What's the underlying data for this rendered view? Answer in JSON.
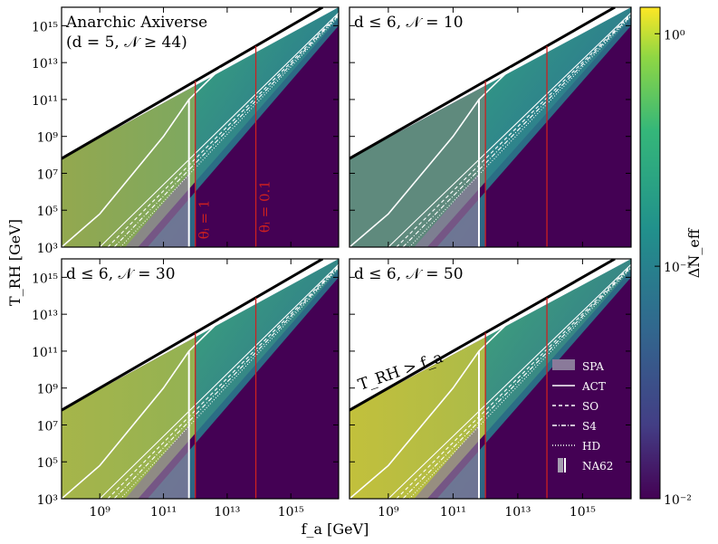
{
  "chart_data": [
    {
      "type": "heatmap",
      "panel": "top-left",
      "title": "Anarchic Axiverse",
      "subtitle": "(d = 5, 𝒩 ≥ 44)",
      "annotations": [
        "θᵢ = 1",
        "θᵢ = 0.1"
      ],
      "fa_ticks": [
        "10⁹",
        "10¹¹",
        "10¹³",
        "10¹⁵"
      ],
      "trh_ticks": [
        "10³",
        "10⁵",
        "10⁷",
        "10⁹",
        "10¹¹",
        "10¹³",
        "10¹⁵"
      ],
      "log_fa_range": [
        7.8,
        16.5
      ],
      "log_trh_range": [
        3,
        16
      ],
      "theta_lines_log_fa": [
        12.0,
        13.9
      ],
      "na62_log_fa": 11.8,
      "act_curve": [
        [
          7.8,
          3
        ],
        [
          9,
          4.8
        ],
        [
          10,
          6.9
        ],
        [
          11,
          9.0
        ],
        [
          11.8,
          11.0
        ],
        [
          12.8,
          12.7
        ]
      ],
      "colors": {
        "theta_line": "#cc2020",
        "boundary": "#000000"
      }
    },
    {
      "type": "heatmap",
      "panel": "top-right",
      "title": "d ≤ 6, 𝒩 = 10",
      "fa_ticks": [
        "10⁹",
        "10¹¹",
        "10¹³",
        "10¹⁵"
      ],
      "trh_ticks": [
        "10³",
        "10⁵",
        "10⁷",
        "10⁹",
        "10¹¹",
        "10¹³",
        "10¹⁵"
      ],
      "log_fa_range": [
        7.8,
        16.5
      ],
      "log_trh_range": [
        3,
        16
      ]
    },
    {
      "type": "heatmap",
      "panel": "bottom-left",
      "title": "d ≤ 6, 𝒩 = 30",
      "fa_ticks": [
        "10⁹",
        "10¹¹",
        "10¹³",
        "10¹⁵"
      ],
      "trh_ticks": [
        "10³",
        "10⁵",
        "10⁷",
        "10⁹",
        "10¹¹",
        "10¹³",
        "10¹⁵"
      ],
      "log_fa_range": [
        7.8,
        16.5
      ],
      "log_trh_range": [
        3,
        16
      ]
    },
    {
      "type": "heatmap",
      "panel": "bottom-right",
      "title": "d ≤ 6, 𝒩 = 50",
      "boundary_label": "T_RH > f_a",
      "fa_ticks": [
        "10⁹",
        "10¹¹",
        "10¹³",
        "10¹⁵"
      ],
      "trh_ticks": [
        "10³",
        "10⁵",
        "10⁷",
        "10⁹",
        "10¹¹",
        "10¹³",
        "10¹⁵"
      ],
      "log_fa_range": [
        7.8,
        16.5
      ],
      "log_trh_range": [
        3,
        16
      ]
    }
  ],
  "axes": {
    "xlabel": "f_a [GeV]",
    "ylabel": "T_RH [GeV]"
  },
  "colorbar": {
    "label": "ΔN_eff",
    "scale": "log",
    "range": [
      0.01,
      1.3
    ],
    "ticks": [
      "10⁰",
      "10⁻¹",
      "10⁻²"
    ],
    "colormap": [
      "#440154",
      "#3b528b",
      "#21918c",
      "#5ec962",
      "#fde725"
    ]
  },
  "legend": {
    "placement": "bottom-right",
    "items": [
      {
        "label": "SPA",
        "style": "band"
      },
      {
        "label": "ACT",
        "style": "solid"
      },
      {
        "label": "SO",
        "style": "dashed"
      },
      {
        "label": "S4",
        "style": "dashdot"
      },
      {
        "label": "HD",
        "style": "dotted"
      },
      {
        "label": "NA62",
        "style": "bar"
      }
    ]
  }
}
